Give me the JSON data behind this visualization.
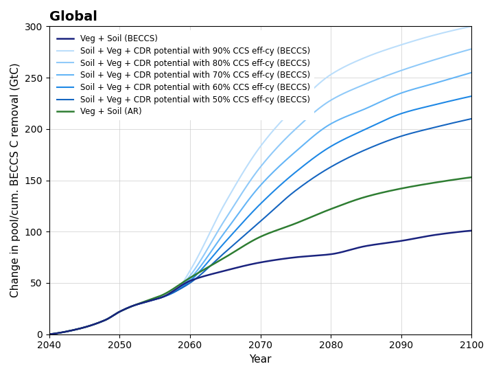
{
  "title": "Global",
  "xlabel": "Year",
  "ylabel": "Change in pool/cum. BECCS C removal (GtC)",
  "xlim": [
    2040,
    2100
  ],
  "ylim": [
    0,
    300
  ],
  "xticks": [
    2040,
    2050,
    2060,
    2070,
    2080,
    2090,
    2100
  ],
  "yticks": [
    0,
    50,
    100,
    150,
    200,
    250,
    300
  ],
  "background_color": "#ffffff",
  "grid_color": "#cccccc",
  "legend_fontsize": 8.5,
  "title_fontsize": 14,
  "axis_fontsize": 11,
  "series": {
    "veg_soil_beccs": {
      "label": "Veg + Soil (BECCS)",
      "color": "#1a237e",
      "linewidth": 1.8,
      "knots_x": [
        2040,
        2044,
        2048,
        2050,
        2052,
        2054,
        2056,
        2060,
        2065,
        2070,
        2075,
        2080,
        2085,
        2090,
        2095,
        2100
      ],
      "knots_y": [
        0,
        5,
        14,
        22,
        28,
        32,
        36,
        52,
        62,
        70,
        75,
        78,
        86,
        91,
        97,
        101
      ]
    },
    "ccs_50": {
      "label": "Soil + Veg + CDR potential with 50% CCS eff-cy (BECCS)",
      "color": "#1565c0",
      "linewidth": 1.5,
      "knots_x": [
        2040,
        2044,
        2048,
        2050,
        2052,
        2054,
        2056,
        2058,
        2060,
        2065,
        2070,
        2075,
        2080,
        2085,
        2090,
        2095,
        2100
      ],
      "knots_y": [
        0,
        5,
        14,
        22,
        28,
        32,
        36,
        42,
        50,
        80,
        110,
        140,
        163,
        180,
        193,
        202,
        210
      ]
    },
    "ccs_60": {
      "label": "Soil + Veg + CDR potential with 60% CCS eff-cy (BECCS)",
      "color": "#1e88e5",
      "linewidth": 1.5,
      "knots_x": [
        2040,
        2044,
        2048,
        2050,
        2052,
        2054,
        2056,
        2058,
        2060,
        2065,
        2070,
        2075,
        2080,
        2085,
        2090,
        2095,
        2100
      ],
      "knots_y": [
        0,
        5,
        14,
        22,
        28,
        32,
        36,
        42,
        52,
        90,
        127,
        158,
        183,
        200,
        215,
        224,
        232
      ]
    },
    "ccs_70": {
      "label": "Soil + Veg + CDR potential with 70% CCS eff-cy (BECCS)",
      "color": "#64b5f6",
      "linewidth": 1.5,
      "knots_x": [
        2040,
        2044,
        2048,
        2050,
        2052,
        2054,
        2056,
        2058,
        2060,
        2065,
        2070,
        2075,
        2080,
        2085,
        2090,
        2095,
        2100
      ],
      "knots_y": [
        0,
        5,
        14,
        22,
        28,
        32,
        36,
        42,
        54,
        100,
        145,
        178,
        205,
        220,
        235,
        245,
        255
      ]
    },
    "ccs_80": {
      "label": "Soil + Veg + CDR potential with 80% CCS eff-cy (BECCS)",
      "color": "#90caf9",
      "linewidth": 1.5,
      "knots_x": [
        2040,
        2044,
        2048,
        2050,
        2052,
        2054,
        2056,
        2058,
        2060,
        2065,
        2070,
        2075,
        2080,
        2085,
        2090,
        2095,
        2100
      ],
      "knots_y": [
        0,
        5,
        14,
        22,
        28,
        32,
        36,
        42,
        57,
        112,
        163,
        200,
        228,
        244,
        257,
        268,
        278
      ]
    },
    "ccs_90": {
      "label": "Soil + Veg + CDR potential with 90% CCS eff-cy (BECCS)",
      "color": "#bbdefb",
      "linewidth": 1.5,
      "knots_x": [
        2040,
        2044,
        2048,
        2050,
        2052,
        2054,
        2056,
        2058,
        2060,
        2065,
        2070,
        2075,
        2080,
        2085,
        2090,
        2095,
        2100
      ],
      "knots_y": [
        0,
        5,
        14,
        22,
        28,
        32,
        36,
        42,
        62,
        128,
        183,
        222,
        253,
        270,
        282,
        292,
        300
      ]
    },
    "veg_soil_ar": {
      "label": "Veg + Soil (AR)",
      "color": "#2e7d32",
      "linewidth": 1.8,
      "knots_x": [
        2040,
        2044,
        2048,
        2050,
        2052,
        2054,
        2056,
        2060,
        2065,
        2070,
        2075,
        2080,
        2085,
        2090,
        2095,
        2100
      ],
      "knots_y": [
        0,
        5,
        14,
        22,
        28,
        33,
        38,
        55,
        75,
        95,
        108,
        122,
        134,
        142,
        148,
        153
      ]
    }
  }
}
